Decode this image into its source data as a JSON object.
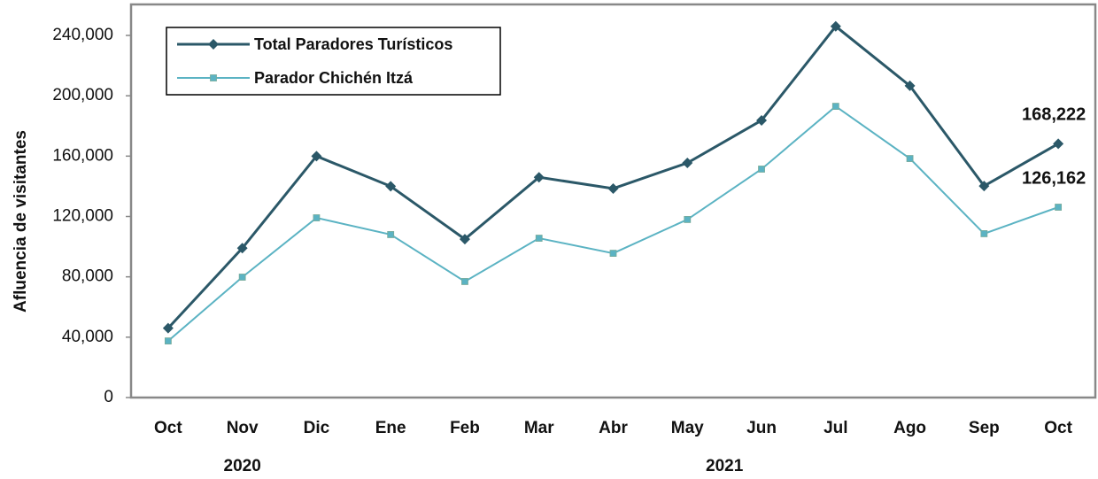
{
  "chart_data": {
    "type": "line",
    "y_label": "Afluencia de visitantes",
    "categories": [
      "Oct",
      "Nov",
      "Dic",
      "Ene",
      "Feb",
      "Mar",
      "Abr",
      "May",
      "Jun",
      "Jul",
      "Ago",
      "Sep",
      "Oct"
    ],
    "year_labels": [
      "2020",
      "2021"
    ],
    "series": [
      {
        "name": "Total Paradores Turísticos",
        "color": "#2b5868",
        "marker": "diamond",
        "values": [
          46000,
          99000,
          160000,
          140000,
          105000,
          146000,
          138500,
          155500,
          183700,
          246000,
          206600,
          140200,
          168222
        ],
        "value_labels": [
          null,
          null,
          null,
          null,
          null,
          null,
          null,
          null,
          null,
          null,
          null,
          null,
          "168,222"
        ]
      },
      {
        "name": "Parador Chichén Itzá",
        "color": "#5bb3c3",
        "marker": "square",
        "values": [
          37500,
          79800,
          119100,
          108000,
          76900,
          105600,
          95600,
          118000,
          151400,
          193000,
          158400,
          108600,
          126162
        ],
        "value_labels": [
          null,
          null,
          null,
          null,
          null,
          null,
          null,
          null,
          null,
          null,
          null,
          null,
          "126,162"
        ]
      }
    ],
    "ylim": [
      0,
      240000
    ],
    "yticks": [
      0,
      {
        "value": 40000,
        "label": "40,000"
      },
      {
        "value": 80000,
        "label": "80,000"
      },
      {
        "value": 120000,
        "label": "120,000"
      },
      {
        "value": 160000,
        "label": "160,000"
      },
      {
        "value": 200000,
        "label": "200,000"
      },
      {
        "value": 240000,
        "label": "240,000"
      }
    ],
    "legend": "top-left"
  }
}
